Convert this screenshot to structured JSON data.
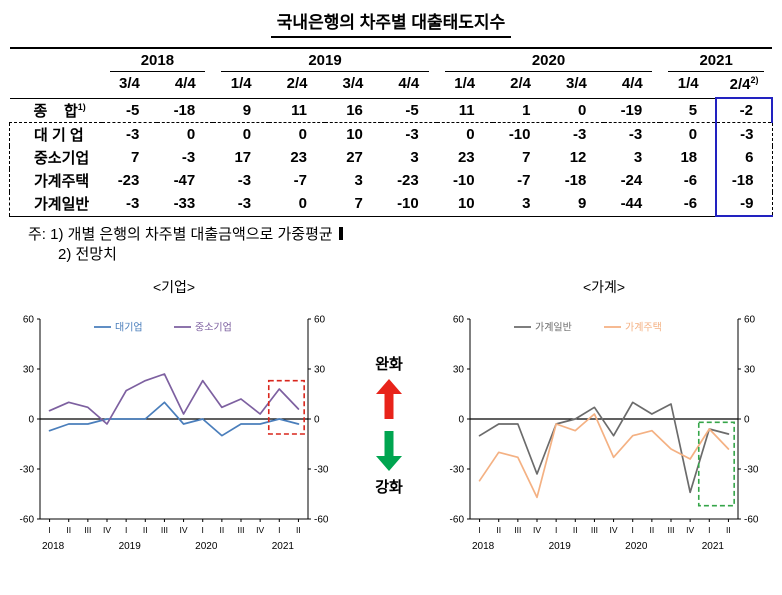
{
  "page": {
    "title": "국내은행의 차주별 대출태도지수"
  },
  "colors": {
    "highlight_column_border": "#2222c0",
    "ease_arrow": "#e8231a",
    "tighten_arrow": "#00a550"
  },
  "table": {
    "year_groups": [
      {
        "label": "2018",
        "quarters": [
          "3/4",
          "4/4"
        ]
      },
      {
        "label": "2019",
        "quarters": [
          "1/4",
          "2/4",
          "3/4",
          "4/4"
        ]
      },
      {
        "label": "2020",
        "quarters": [
          "1/4",
          "2/4",
          "3/4",
          "4/4"
        ]
      },
      {
        "label": "2021",
        "quarters": [
          "1/4",
          "2/4"
        ]
      }
    ],
    "last_quarter_footnote": "2)",
    "rows": [
      {
        "label": "종    합",
        "footnote": "1)",
        "values": [
          -5,
          -18,
          9,
          11,
          16,
          -5,
          11,
          1,
          0,
          -19,
          5,
          -2
        ]
      },
      {
        "label": "대 기 업",
        "footnote": "",
        "values": [
          -3,
          0,
          0,
          0,
          10,
          -3,
          0,
          -10,
          -3,
          -3,
          0,
          -3
        ]
      },
      {
        "label": "중소기업",
        "footnote": "",
        "values": [
          7,
          -3,
          17,
          23,
          27,
          3,
          23,
          7,
          12,
          3,
          18,
          6
        ]
      },
      {
        "label": "가계주택",
        "footnote": "",
        "values": [
          -23,
          -47,
          -3,
          -7,
          3,
          -23,
          -10,
          -7,
          -18,
          -24,
          -6,
          -18
        ]
      },
      {
        "label": "가계일반",
        "footnote": "",
        "values": [
          -3,
          -33,
          -3,
          0,
          7,
          -10,
          10,
          3,
          9,
          -44,
          -6,
          -9
        ]
      }
    ]
  },
  "notes": {
    "line1": "주: 1) 개별 은행의 차주별 대출금액으로 가중평균",
    "line2": "2) 전망치"
  },
  "annotations": {
    "ease_label": "완화",
    "tighten_label": "강화"
  },
  "chart_data": [
    {
      "type": "line",
      "title": "<기업>",
      "ylim": [
        -60,
        60
      ],
      "yticks": [
        60,
        30,
        0,
        -30,
        -60
      ],
      "x_tick_labels": [
        "I",
        "II",
        "III",
        "IV",
        "I",
        "II",
        "III",
        "IV",
        "I",
        "II",
        "III",
        "IV",
        "I",
        "II"
      ],
      "year_labels": [
        "2018",
        "2019",
        "2020",
        "2021"
      ],
      "year_start_index": [
        0,
        4,
        8,
        12
      ],
      "legend_x": [
        88,
        168
      ],
      "series": [
        {
          "name": "대기업",
          "color": "#4a7ebb",
          "values": [
            -7,
            -3,
            -3,
            0,
            0,
            0,
            10,
            -3,
            0,
            -10,
            -3,
            -3,
            0,
            -3
          ]
        },
        {
          "name": "중소기업",
          "color": "#7d60a0",
          "values": [
            5,
            10,
            7,
            -3,
            17,
            23,
            27,
            3,
            23,
            7,
            12,
            3,
            18,
            6
          ]
        }
      ],
      "highlight": {
        "x_from": 11.45,
        "x_to": 13.3,
        "y_from": -9,
        "y_to": 23,
        "color": "#d9261c"
      }
    },
    {
      "type": "line",
      "title": "<가계>",
      "ylim": [
        -60,
        60
      ],
      "yticks": [
        60,
        30,
        0,
        -30,
        -60
      ],
      "x_tick_labels": [
        "I",
        "II",
        "III",
        "IV",
        "I",
        "II",
        "III",
        "IV",
        "I",
        "II",
        "III",
        "IV",
        "I",
        "II"
      ],
      "year_labels": [
        "2018",
        "2019",
        "2020",
        "2021"
      ],
      "year_start_index": [
        0,
        4,
        8,
        12
      ],
      "legend_x": [
        78,
        168
      ],
      "series": [
        {
          "name": "가계일반",
          "color": "#6b6b6b",
          "values": [
            -10,
            -3,
            -3,
            -33,
            -3,
            0,
            7,
            -10,
            10,
            3,
            9,
            -44,
            -6,
            -9
          ]
        },
        {
          "name": "가계주택",
          "color": "#f4b183",
          "values": [
            -37,
            -20,
            -23,
            -47,
            -3,
            -7,
            3,
            -23,
            -10,
            -7,
            -18,
            -24,
            -6,
            -18
          ]
        }
      ],
      "highlight": {
        "x_from": 11.45,
        "x_to": 13.3,
        "y_from": -52,
        "y_to": -2,
        "color": "#35a549"
      }
    }
  ]
}
